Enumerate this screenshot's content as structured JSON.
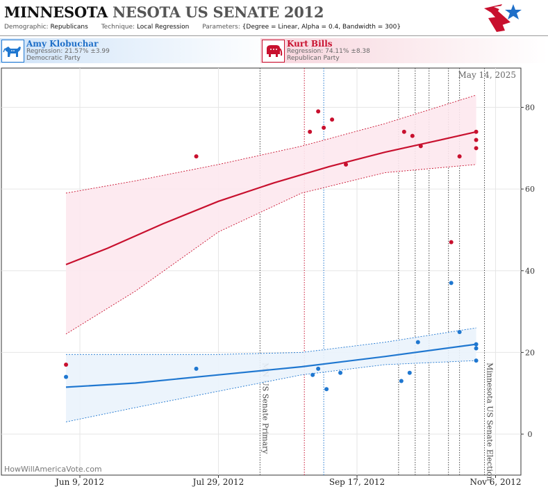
{
  "header": {
    "title_part1": "MINNESOTA",
    "title_part2": "NESOTA US SENATE 2012",
    "demographic_label": "Demographic:",
    "demographic_value": "Republicans",
    "technique_label": "Technique:",
    "technique_value": "Local Regression",
    "parameters_label": "Parameters:",
    "parameters_value": "{Degree = Linear, Alpha = 0.4, Bandwidth = 300}"
  },
  "candidates": {
    "dem": {
      "name": "Amy Klobuchar",
      "regression": "Regression: 21.57% ±3.99",
      "party": "Democratic Party",
      "color": "#1f77d0"
    },
    "rep": {
      "name": "Kurt Bills",
      "regression": "Regression: 74.11% ±8.38",
      "party": "Republican Party",
      "color": "#c8102e"
    }
  },
  "chart_data": {
    "type": "scatter",
    "date_label": "May 14, 2025",
    "watermark": "HowWillAmericaVote.com",
    "x_ticks": [
      "Jun 9, 2012",
      "Jul 29, 2012",
      "Sep 17, 2012",
      "Nov 6, 2012"
    ],
    "y_ticks": [
      "0",
      "20",
      "40",
      "60",
      "80"
    ],
    "ylim": [
      -13,
      100
    ],
    "event_labels": [
      "MN US Senate Primary",
      "Minnesota US Senate Election"
    ],
    "series": [
      {
        "name": "Kurt Bills",
        "color": "#c8102e",
        "band_color": "#fde8ee",
        "points": [
          [
            -5,
            17
          ],
          [
            42,
            68
          ],
          [
            83,
            74
          ],
          [
            86,
            79
          ],
          [
            88,
            75
          ],
          [
            91,
            77
          ],
          [
            96,
            66
          ],
          [
            117,
            74
          ],
          [
            120,
            73
          ],
          [
            123,
            70.5
          ],
          [
            134,
            47
          ],
          [
            137,
            68
          ],
          [
            143,
            74
          ],
          [
            143,
            72
          ],
          [
            143,
            70
          ]
        ],
        "trend": [
          [
            -5,
            41.5
          ],
          [
            10,
            45.5
          ],
          [
            30,
            51.5
          ],
          [
            50,
            57
          ],
          [
            70,
            61.5
          ],
          [
            90,
            65.5
          ],
          [
            110,
            69
          ],
          [
            130,
            72
          ],
          [
            143,
            74
          ]
        ],
        "upper": [
          [
            -5,
            59
          ],
          [
            20,
            62
          ],
          [
            50,
            66
          ],
          [
            80,
            70.5
          ],
          [
            110,
            76
          ],
          [
            143,
            83
          ]
        ],
        "lower": [
          [
            -5,
            24.5
          ],
          [
            20,
            35
          ],
          [
            50,
            49.5
          ],
          [
            80,
            59
          ],
          [
            110,
            64
          ],
          [
            143,
            66
          ]
        ]
      },
      {
        "name": "Amy Klobuchar",
        "color": "#1f77d0",
        "band_color": "#eaf3fc",
        "points": [
          [
            -5,
            14
          ],
          [
            42,
            16
          ],
          [
            84,
            14.5
          ],
          [
            86,
            16
          ],
          [
            89,
            11
          ],
          [
            94,
            15
          ],
          [
            116,
            13
          ],
          [
            119,
            15
          ],
          [
            122,
            22.5
          ],
          [
            134,
            37
          ],
          [
            137,
            25
          ],
          [
            143,
            22
          ],
          [
            143,
            21
          ],
          [
            143,
            18
          ]
        ],
        "trend": [
          [
            -5,
            11.5
          ],
          [
            20,
            12.5
          ],
          [
            50,
            14.5
          ],
          [
            80,
            16.5
          ],
          [
            110,
            19
          ],
          [
            143,
            22
          ]
        ],
        "upper": [
          [
            -5,
            19.5
          ],
          [
            20,
            19.5
          ],
          [
            50,
            19.5
          ],
          [
            80,
            20
          ],
          [
            110,
            22.5
          ],
          [
            143,
            26
          ]
        ],
        "lower": [
          [
            -5,
            3
          ],
          [
            20,
            6.5
          ],
          [
            50,
            10.5
          ],
          [
            80,
            14.5
          ],
          [
            110,
            17
          ],
          [
            143,
            18
          ]
        ]
      }
    ],
    "event_lines": [
      {
        "day": 65,
        "color": "#444444",
        "label_index": 0
      },
      {
        "day": 81,
        "color": "#c8102e"
      },
      {
        "day": 88,
        "color": "#1f77d0"
      },
      {
        "day": 115,
        "color": "#444444"
      },
      {
        "day": 121,
        "color": "#444444"
      },
      {
        "day": 126,
        "color": "#444444"
      },
      {
        "day": 133,
        "color": "#444444"
      },
      {
        "day": 137,
        "color": "#444444"
      },
      {
        "day": 146,
        "color": "#444444",
        "label_index": 1
      }
    ]
  }
}
